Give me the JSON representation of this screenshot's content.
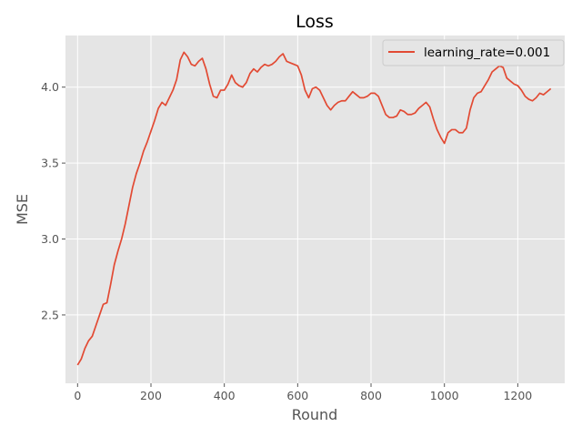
{
  "chart_data": {
    "type": "line",
    "title": "Loss",
    "xlabel": "Round",
    "ylabel": "MSE",
    "xlim": [
      -33,
      1328
    ],
    "ylim": [
      2.05,
      4.34
    ],
    "xticks": [
      0,
      200,
      400,
      600,
      800,
      1000,
      1200
    ],
    "yticks": [
      2.5,
      3.0,
      3.5,
      4.0
    ],
    "xtick_labels": [
      "0",
      "200",
      "400",
      "600",
      "800",
      "1000",
      "1200"
    ],
    "ytick_labels": [
      "2.5",
      "3.0",
      "3.5",
      "4.0"
    ],
    "grid": true,
    "legend_position": "top-right",
    "style": {
      "plot_background": "#e5e5e5",
      "grid_color": "#ffffff",
      "line_color": "#e24a33"
    },
    "series": [
      {
        "name": "learning_rate=0.001",
        "x": [
          0,
          10,
          20,
          30,
          40,
          50,
          60,
          70,
          80,
          90,
          100,
          110,
          120,
          130,
          140,
          150,
          160,
          170,
          180,
          190,
          200,
          210,
          220,
          230,
          240,
          250,
          260,
          270,
          280,
          290,
          300,
          310,
          320,
          330,
          340,
          350,
          360,
          370,
          380,
          390,
          400,
          410,
          420,
          430,
          440,
          450,
          460,
          470,
          480,
          490,
          500,
          510,
          520,
          530,
          540,
          550,
          560,
          570,
          580,
          590,
          600,
          610,
          620,
          630,
          640,
          650,
          660,
          670,
          680,
          690,
          700,
          710,
          720,
          730,
          740,
          750,
          760,
          770,
          780,
          790,
          800,
          810,
          820,
          830,
          840,
          850,
          860,
          870,
          880,
          890,
          900,
          910,
          920,
          930,
          940,
          950,
          960,
          970,
          980,
          990,
          1000,
          1010,
          1020,
          1030,
          1040,
          1050,
          1060,
          1070,
          1080,
          1090,
          1100,
          1110,
          1120,
          1130,
          1140,
          1150,
          1160,
          1170,
          1180,
          1190,
          1200,
          1210,
          1220,
          1230,
          1240,
          1250,
          1260,
          1270,
          1280,
          1290
        ],
        "y": [
          2.17,
          2.21,
          2.28,
          2.33,
          2.36,
          2.43,
          2.5,
          2.57,
          2.58,
          2.7,
          2.83,
          2.92,
          3.0,
          3.1,
          3.22,
          3.34,
          3.43,
          3.5,
          3.58,
          3.64,
          3.71,
          3.78,
          3.86,
          3.9,
          3.88,
          3.93,
          3.98,
          4.05,
          4.18,
          4.23,
          4.2,
          4.15,
          4.14,
          4.17,
          4.19,
          4.12,
          4.02,
          3.94,
          3.93,
          3.98,
          3.98,
          4.02,
          4.08,
          4.03,
          4.01,
          4.0,
          4.03,
          4.09,
          4.12,
          4.1,
          4.13,
          4.15,
          4.14,
          4.15,
          4.17,
          4.2,
          4.22,
          4.17,
          4.16,
          4.15,
          4.14,
          4.08,
          3.98,
          3.93,
          3.99,
          4.0,
          3.98,
          3.93,
          3.88,
          3.85,
          3.88,
          3.9,
          3.91,
          3.91,
          3.94,
          3.97,
          3.95,
          3.93,
          3.93,
          3.94,
          3.96,
          3.96,
          3.94,
          3.88,
          3.82,
          3.8,
          3.8,
          3.81,
          3.85,
          3.84,
          3.82,
          3.82,
          3.83,
          3.86,
          3.88,
          3.9,
          3.87,
          3.79,
          3.72,
          3.67,
          3.63,
          3.7,
          3.72,
          3.72,
          3.7,
          3.7,
          3.73,
          3.85,
          3.93,
          3.96,
          3.97,
          4.01,
          4.05,
          4.1,
          4.12,
          4.14,
          4.13,
          4.06,
          4.04,
          4.02,
          4.01,
          3.98,
          3.94,
          3.92,
          3.91,
          3.93,
          3.96,
          3.95,
          3.97,
          3.99
        ]
      }
    ]
  }
}
